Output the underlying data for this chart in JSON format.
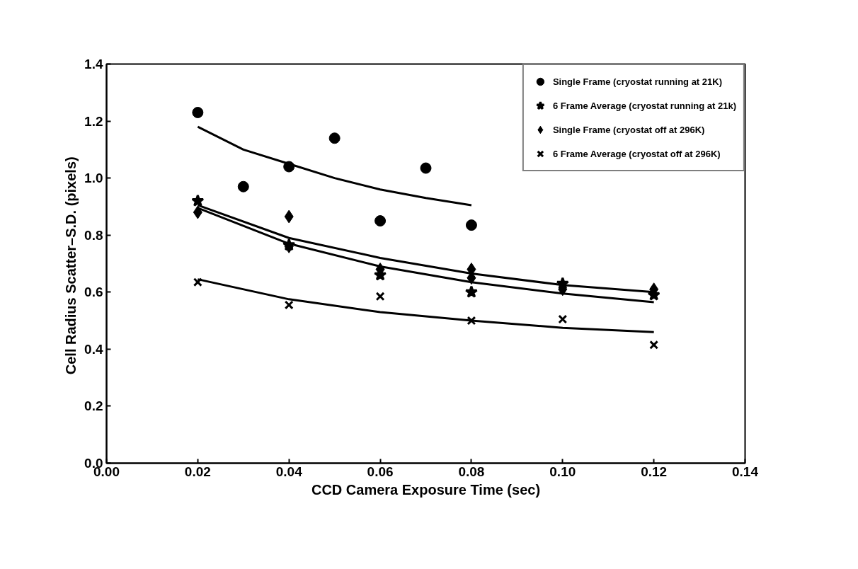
{
  "chart_data": {
    "type": "scatter",
    "xlabel": "CCD Camera Exposure Time (sec)",
    "ylabel": "Cell Radius Scatter–S.D.  (pixels)",
    "xlim": [
      0,
      0.14
    ],
    "ylim": [
      0,
      1.4
    ],
    "xticks": [
      {
        "value": 0,
        "label": "0.00"
      },
      {
        "value": 0.02,
        "label": "0.02"
      },
      {
        "value": 0.04,
        "label": "0.04"
      },
      {
        "value": 0.06,
        "label": "0.06"
      },
      {
        "value": 0.08,
        "label": "0.08"
      },
      {
        "value": 0.1,
        "label": "0.10"
      },
      {
        "value": 0.12,
        "label": "0.12"
      },
      {
        "value": 0.14,
        "label": "0.14"
      }
    ],
    "yticks": [
      {
        "value": 0,
        "label": "0.0"
      },
      {
        "value": 0.2,
        "label": "0.2"
      },
      {
        "value": 0.4,
        "label": "0.4"
      },
      {
        "value": 0.6,
        "label": "0.6"
      },
      {
        "value": 0.8,
        "label": "0.8"
      },
      {
        "value": 1.0,
        "label": "1.0"
      },
      {
        "value": 1.2,
        "label": "1.2"
      },
      {
        "value": 1.4,
        "label": "1.4"
      }
    ],
    "grid": false,
    "legend": "top right",
    "series": [
      {
        "name": "Single Frame (cryostat running at 21K)",
        "color": "#000000",
        "marker": "circle",
        "x": [
          0.02,
          0.03,
          0.04,
          0.05,
          0.06,
          0.07,
          0.08
        ],
        "values": [
          1.23,
          0.97,
          1.04,
          1.14,
          0.85,
          1.035,
          0.835
        ]
      },
      {
        "name": "6 Frame Average (cryostat running at 21k)",
        "color": "#000000",
        "marker": "star",
        "x": [
          0.02,
          0.04,
          0.06,
          0.08,
          0.1,
          0.12
        ],
        "values": [
          0.92,
          0.765,
          0.66,
          0.6,
          0.63,
          0.59
        ]
      },
      {
        "name": "Single Frame (cryostat off at 296K)",
        "color": "#000000",
        "marker": "diamond",
        "x": [
          0.02,
          0.04,
          0.04,
          0.06,
          0.08,
          0.08,
          0.1,
          0.12
        ],
        "values": [
          0.88,
          0.865,
          0.76,
          0.68,
          0.68,
          0.65,
          0.61,
          0.61
        ]
      },
      {
        "name": "6 Frame Average (cryostat off at 296K)",
        "color": "#000000",
        "marker": "cross",
        "x": [
          0.02,
          0.04,
          0.06,
          0.08,
          0.1,
          0.12
        ],
        "values": [
          0.635,
          0.555,
          0.585,
          0.5,
          0.505,
          0.415
        ]
      },
      {
        "type": "line",
        "color": "#000000",
        "marker": "none",
        "x": [
          0.02,
          0.03,
          0.04,
          0.05,
          0.06,
          0.07,
          0.08
        ],
        "values": [
          1.18,
          1.1,
          1.05,
          1.0,
          0.96,
          0.93,
          0.905
        ]
      },
      {
        "type": "line",
        "color": "#000000",
        "marker": "none",
        "x": [
          0.02,
          0.04,
          0.06,
          0.08,
          0.1,
          0.12
        ],
        "values": [
          0.905,
          0.79,
          0.72,
          0.665,
          0.625,
          0.6
        ]
      },
      {
        "type": "line",
        "color": "#000000",
        "marker": "none",
        "x": [
          0.02,
          0.04,
          0.06,
          0.08,
          0.1,
          0.12
        ],
        "values": [
          0.895,
          0.77,
          0.69,
          0.635,
          0.595,
          0.565
        ]
      },
      {
        "type": "line",
        "color": "#000000",
        "marker": "none",
        "x": [
          0.02,
          0.04,
          0.06,
          0.08,
          0.1,
          0.12
        ],
        "values": [
          0.645,
          0.575,
          0.53,
          0.5,
          0.475,
          0.46
        ]
      }
    ]
  }
}
